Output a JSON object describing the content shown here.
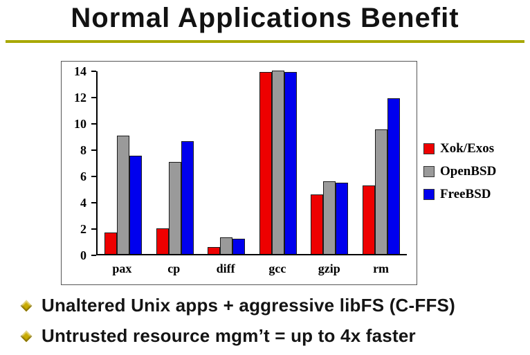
{
  "slide": {
    "title": "Normal Applications Benefit",
    "bullets": [
      "Unaltered Unix apps + aggressive libFS (C-FFS)",
      "Untrusted resource mgm’t = up to 4x faster"
    ]
  },
  "colors": {
    "title_underline": "#a8a800",
    "bullet_diamond": "#c9ab00",
    "axis": "#000000"
  },
  "chart_data": {
    "type": "bar",
    "title": "",
    "xlabel": "",
    "ylabel": "",
    "categories": [
      "pax",
      "cp",
      "diff",
      "gcc",
      "gzip",
      "rm"
    ],
    "series": [
      {
        "name": "Xok/Exos",
        "color": "#ee0000",
        "values": [
          1.6,
          1.9,
          0.5,
          13.9,
          4.5,
          5.2
        ]
      },
      {
        "name": "OpenBSD",
        "color": "#9a9a9a",
        "values": [
          9.0,
          7.0,
          1.2,
          14.0,
          5.5,
          9.5
        ]
      },
      {
        "name": "FreeBSD",
        "color": "#0000ee",
        "values": [
          7.5,
          8.6,
          1.1,
          13.9,
          5.4,
          11.9
        ]
      }
    ],
    "ylim": [
      0,
      14
    ],
    "yticks": [
      0,
      2,
      4,
      6,
      8,
      10,
      12,
      14
    ],
    "grid": false,
    "legend_position": "right"
  }
}
